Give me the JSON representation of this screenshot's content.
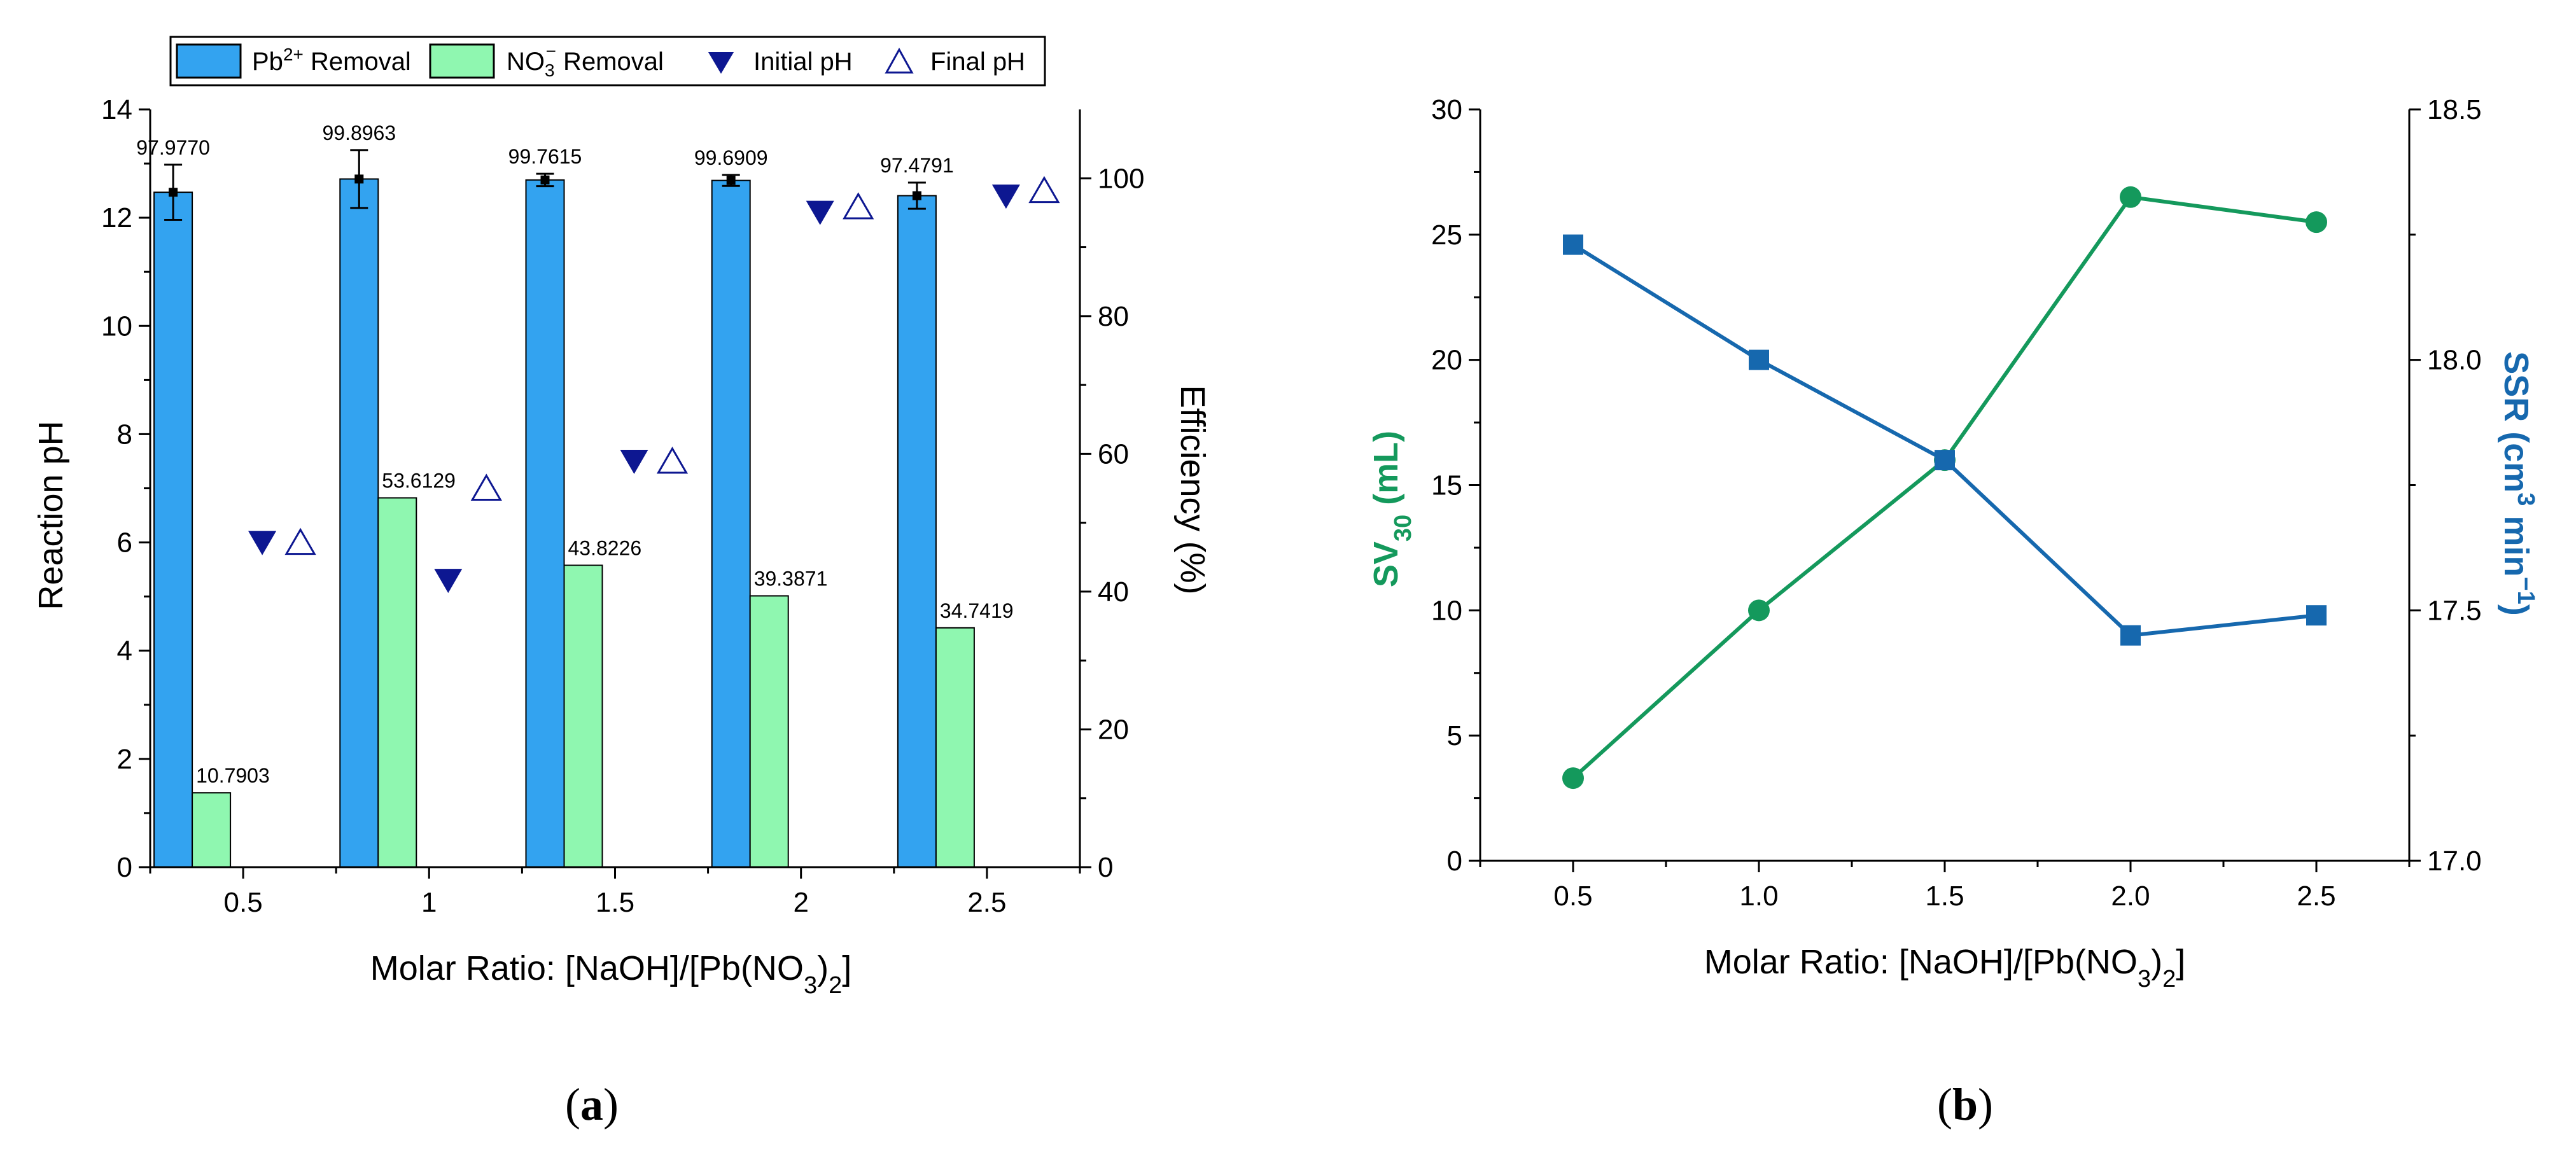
{
  "chart_data": [
    {
      "panel_label": "(a)",
      "type": "bar",
      "categories": [
        "0.5",
        "1",
        "1.5",
        "2",
        "2.5"
      ],
      "xlabel": "Molar Ratio: [NaOH]/[Pb(NO3)2]",
      "ylabel_left": "Reaction pH",
      "ylabel_right": "Efficiency (%)",
      "ylim_left": [
        0,
        14
      ],
      "ylim_right": [
        0,
        110
      ],
      "yticks_left": [
        0,
        2,
        4,
        6,
        8,
        10,
        12,
        14
      ],
      "yticks_right": [
        0,
        20,
        40,
        60,
        80,
        100
      ],
      "legend_position": "top",
      "series": [
        {
          "name": "Pb2+ Removal",
          "kind": "bar",
          "axis": "right",
          "color": "#33A3F0",
          "values": [
            97.977,
            99.8963,
            99.7615,
            99.6909,
            97.4791
          ],
          "errors": [
            4.0,
            4.2,
            0.9,
            0.8,
            1.9
          ],
          "labels": [
            "97.9770",
            "99.8963",
            "99.7615",
            "99.6909",
            "97.4791"
          ]
        },
        {
          "name": "NO3- Removal",
          "kind": "bar",
          "axis": "right",
          "color": "#8FF7B0",
          "values": [
            10.7903,
            53.6129,
            43.8226,
            39.3871,
            34.7419
          ],
          "labels": [
            "10.7903",
            "53.6129",
            "43.8226",
            "39.3871",
            "34.7419"
          ]
        },
        {
          "name": "Initial pH",
          "kind": "marker",
          "marker": "triangle-down-filled",
          "axis": "left",
          "color": "#0D1791",
          "values": [
            6.0,
            5.3,
            7.5,
            12.1,
            12.4
          ]
        },
        {
          "name": "Final pH",
          "kind": "marker",
          "marker": "triangle-up-open",
          "axis": "left",
          "color": "#0D1791",
          "values": [
            6.0,
            7.0,
            7.5,
            12.2,
            12.5
          ]
        }
      ],
      "legend": [
        "Pb2+ Removal",
        "NO3- Removal",
        "Initial pH",
        "Final pH"
      ]
    },
    {
      "panel_label": "(b)",
      "type": "line",
      "x": [
        0.5,
        1.0,
        1.5,
        2.0,
        2.5
      ],
      "xticks": [
        "0.5",
        "1.0",
        "1.5",
        "2.0",
        "2.5"
      ],
      "xlim": [
        0.25,
        2.75
      ],
      "xlabel": "Molar Ratio: [NaOH]/[Pb(NO3)2]",
      "ylabel_left": "SV30 (mL)",
      "ylabel_right": "SSR (cm3 min-1)",
      "ylim_left": [
        0,
        30
      ],
      "ylim_right": [
        17.0,
        18.5
      ],
      "yticks_left": [
        "0",
        "5",
        "10",
        "15",
        "20",
        "25",
        "30"
      ],
      "yticks_right": [
        "17.0",
        "17.5",
        "18.0",
        "18.5"
      ],
      "series": [
        {
          "name": "SV30",
          "axis": "left",
          "marker": "circle",
          "color": "#14995C",
          "values": [
            3.3,
            10.0,
            16.0,
            26.5,
            25.5
          ]
        },
        {
          "name": "SSR",
          "axis": "right",
          "marker": "square",
          "color": "#1668AE",
          "values": [
            18.23,
            18.0,
            17.8,
            17.45,
            17.49
          ]
        }
      ]
    }
  ]
}
